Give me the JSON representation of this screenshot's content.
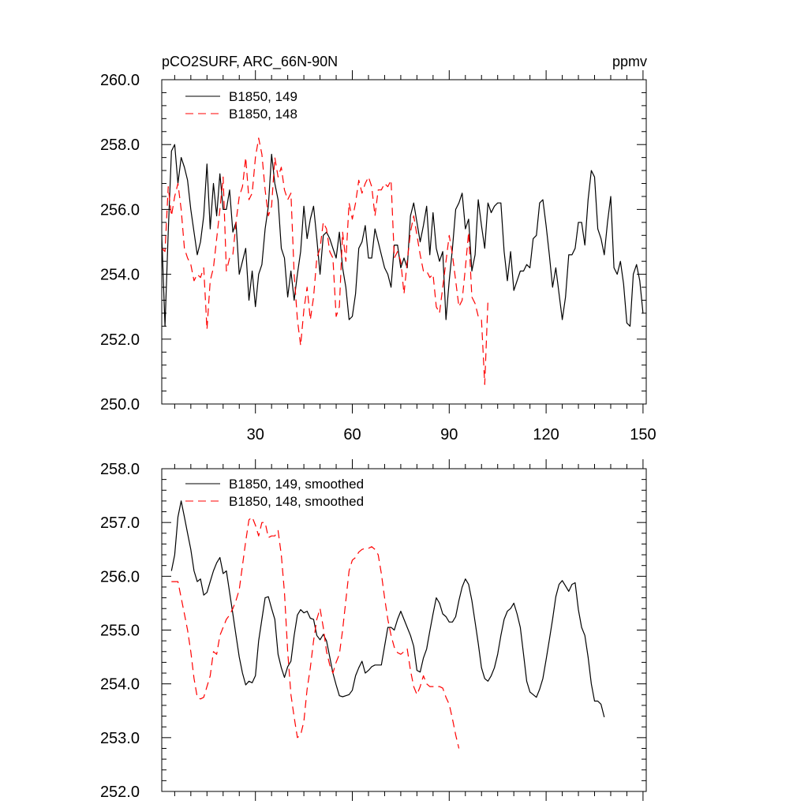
{
  "chart_data": [
    {
      "type": "line",
      "title": "pCO2SURF, ARC_66N-90N",
      "units": "ppmv",
      "xlim": [
        1,
        151
      ],
      "ylim": [
        250,
        260
      ],
      "xticks": [
        30,
        60,
        90,
        120,
        150
      ],
      "yticks": [
        250,
        252,
        254,
        256,
        258,
        260
      ],
      "ytick_labels": [
        "250.0",
        "252.0",
        "254.0",
        "256.0",
        "258.0",
        "260.0"
      ],
      "legend_position": "top-left",
      "series": [
        {
          "name": "B1850, 149",
          "color": "#000000",
          "style": "solid",
          "x_start": 1,
          "values": [
            255.2,
            252.4,
            255.3,
            257.8,
            258.0,
            256.8,
            257.6,
            257.3,
            256.9,
            256.0,
            255.3,
            254.6,
            255.0,
            255.8,
            257.4,
            255.4,
            256.8,
            255.8,
            257.1,
            256.0,
            256.0,
            256.6,
            255.3,
            255.6,
            254.0,
            254.4,
            254.8,
            253.2,
            254.1,
            253.0,
            254.0,
            254.3,
            255.4,
            256.1,
            257.7,
            256.8,
            256.3,
            254.8,
            254.5,
            253.3,
            254.1,
            253.2,
            254.0,
            254.7,
            256.1,
            255.1,
            255.7,
            256.1,
            255.1,
            254.0,
            255.2,
            255.3,
            255.1,
            254.8,
            254.5,
            255.3,
            254.2,
            253.6,
            252.6,
            252.7,
            253.4,
            254.8,
            255.0,
            255.5,
            254.5,
            254.5,
            255.4,
            255.0,
            254.6,
            254.2,
            254.0,
            253.6,
            254.9,
            254.9,
            254.2,
            254.5,
            254.2,
            255.8,
            256.2,
            255.6,
            255.0,
            255.5,
            256.1,
            254.6,
            255.9,
            254.8,
            254.4,
            254.7,
            252.6,
            253.8,
            254.8,
            256.0,
            256.2,
            256.5,
            255.4,
            255.7,
            254.1,
            254.6,
            256.3,
            255.5,
            254.8,
            256.2,
            255.9,
            256.1,
            256.2,
            256.2,
            254.7,
            253.8,
            254.7,
            253.5,
            253.8,
            254.1,
            254.1,
            254.3,
            254.2,
            255.1,
            255.2,
            256.2,
            256.3,
            255.5,
            254.6,
            253.6,
            254.2,
            253.4,
            252.6,
            253.3,
            254.6,
            254.6,
            254.8,
            255.6,
            255.6,
            254.9,
            256.3,
            257.2,
            257.0,
            255.4,
            255.1,
            254.6,
            255.6,
            256.4,
            254.2,
            254.0,
            254.4,
            253.7,
            252.5,
            252.4,
            254.0,
            254.3,
            253.8,
            252.8
          ]
        },
        {
          "name": "B1850, 148",
          "color": "#ff0000",
          "style": "dashed",
          "x_start": 1,
          "values": [
            254.8,
            254.7,
            256.7,
            255.8,
            256.4,
            256.8,
            256.0,
            254.8,
            254.5,
            254.3,
            253.8,
            254.0,
            253.9,
            254.2,
            252.3,
            253.8,
            254.2,
            255.1,
            256.0,
            257.0,
            254.1,
            254.5,
            254.6,
            255.6,
            256.4,
            256.7,
            257.6,
            256.3,
            256.5,
            257.6,
            258.2,
            257.7,
            256.6,
            255.8,
            256.1,
            257.6,
            257.0,
            257.3,
            256.6,
            256.3,
            256.5,
            254.0,
            252.6,
            251.8,
            252.9,
            253.6,
            252.6,
            253.3,
            254.5,
            254.8,
            255.6,
            255.4,
            254.7,
            254.5,
            252.7,
            253.0,
            255.3,
            254.4,
            256.2,
            255.7,
            256.2,
            256.9,
            256.5,
            256.8,
            257.0,
            256.7,
            255.8,
            256.6,
            256.6,
            256.8,
            256.7,
            256.9,
            254.5,
            254.7,
            254.4,
            253.4,
            254.4,
            255.3,
            255.8,
            255.2,
            254.6,
            254.1,
            254.1,
            253.9,
            254.0,
            253.0,
            252.8,
            253.6,
            254.4,
            255.2,
            254.6,
            253.8,
            253.0,
            253.2,
            254.2,
            255.3,
            253.3,
            253.1,
            252.7,
            252.6,
            250.6,
            253.2
          ]
        }
      ]
    },
    {
      "type": "line",
      "title": "",
      "xlim": [
        1,
        151
      ],
      "ylim": [
        252,
        258
      ],
      "xticks": [
        30,
        60,
        90,
        120,
        150
      ],
      "yticks": [
        252,
        253,
        254,
        255,
        256,
        257,
        258
      ],
      "ytick_labels": [
        "252.0",
        "253.0",
        "254.0",
        "255.0",
        "256.0",
        "257.0",
        "258.0"
      ],
      "legend_position": "top-left",
      "series": [
        {
          "name": "B1850, 149, smoothed",
          "color": "#000000",
          "style": "solid",
          "x_start": 4,
          "values": [
            256.1,
            256.4,
            257.1,
            257.4,
            257.1,
            256.8,
            256.5,
            256.1,
            255.9,
            255.95,
            255.65,
            255.7,
            255.9,
            256.1,
            256.25,
            256.35,
            256.05,
            256.1,
            255.7,
            255.3,
            254.9,
            254.5,
            254.2,
            253.98,
            254.05,
            254.02,
            254.15,
            254.8,
            255.2,
            255.6,
            255.62,
            255.4,
            255.2,
            254.55,
            254.3,
            254.12,
            254.32,
            254.42,
            254.9,
            255.28,
            255.38,
            255.32,
            255.35,
            255.22,
            255.2,
            254.9,
            254.82,
            254.92,
            254.8,
            254.5,
            254.2,
            253.98,
            253.78,
            253.76,
            253.78,
            253.8,
            253.88,
            254.15,
            254.3,
            254.42,
            254.2,
            254.25,
            254.32,
            254.35,
            254.35,
            254.35,
            254.7,
            255.05,
            255.05,
            255.0,
            255.2,
            255.35,
            255.2,
            255.05,
            254.9,
            254.7,
            254.25,
            254.22,
            254.48,
            254.65,
            254.98,
            255.3,
            255.6,
            255.5,
            255.3,
            255.25,
            255.15,
            255.15,
            255.25,
            255.55,
            255.8,
            255.95,
            255.85,
            255.55,
            255.15,
            254.75,
            254.3,
            254.1,
            254.05,
            254.15,
            254.3,
            254.55,
            254.9,
            255.2,
            255.35,
            255.4,
            255.5,
            255.3,
            255.05,
            254.55,
            254.05,
            253.85,
            253.8,
            253.75,
            253.9,
            254.1,
            254.45,
            254.82,
            255.2,
            255.62,
            255.85,
            255.92,
            255.82,
            255.72,
            255.85,
            255.88,
            255.38,
            255.05,
            254.9,
            254.5,
            254.0,
            253.68,
            253.68,
            253.62,
            253.38
          ]
        },
        {
          "name": "B1850, 148, smoothed",
          "color": "#ff0000",
          "style": "dashed",
          "x_start": 4,
          "values": [
            255.9,
            255.9,
            255.9,
            255.6,
            255.3,
            255.0,
            254.6,
            254.1,
            253.75,
            253.72,
            253.75,
            253.95,
            254.15,
            254.6,
            254.55,
            254.9,
            255.05,
            255.2,
            255.28,
            255.4,
            255.55,
            255.75,
            256.2,
            256.65,
            257.05,
            257.1,
            256.95,
            256.75,
            257.0,
            257.0,
            256.72,
            256.75,
            256.75,
            256.85,
            256.4,
            255.7,
            254.6,
            253.8,
            253.38,
            253.0,
            253.05,
            253.3,
            253.9,
            254.3,
            254.8,
            255.2,
            255.4,
            255.05,
            254.6,
            254.35,
            254.2,
            254.4,
            254.55,
            255.0,
            255.55,
            256.1,
            256.3,
            256.35,
            256.45,
            256.5,
            256.52,
            256.52,
            256.55,
            256.5,
            256.4,
            256.05,
            255.6,
            255.2,
            254.9,
            254.68,
            254.58,
            254.55,
            254.6,
            254.65,
            254.25,
            253.95,
            253.8,
            253.95,
            254.15,
            254.0,
            253.95,
            253.95,
            253.95,
            253.95,
            253.92,
            253.75,
            253.62,
            253.35,
            253.05,
            252.8
          ]
        }
      ]
    }
  ]
}
